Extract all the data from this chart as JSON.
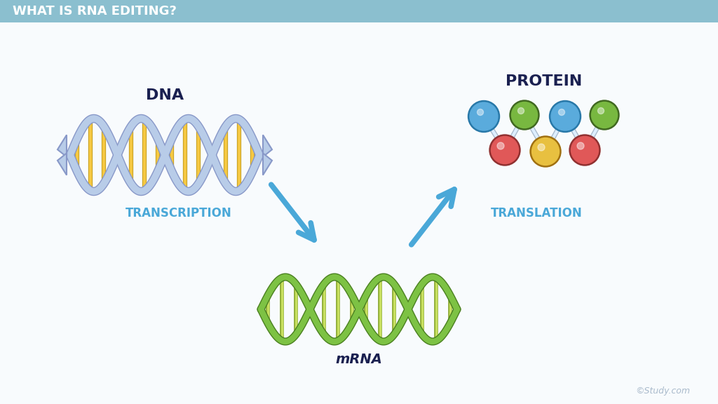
{
  "title": "WHAT IS RNA EDITING?",
  "title_bg_top": "#8bbfcf",
  "title_bg_bot": "#b0d4e0",
  "title_text_color": "#ffffff",
  "bg_color": "#f8fbfd",
  "label_dna": "DNA",
  "label_mrna": "mRNA",
  "label_protein": "PROTEIN",
  "label_transcription": "TRANSCRIPTION",
  "label_translation": "TRANSLATION",
  "label_study": "©Study.com",
  "dna_strand_color": "#b8cce8",
  "dna_strand_outline": "#8898c8",
  "dna_rung_color": "#f5c842",
  "dna_rung_outline": "#c8a020",
  "mrna_strand_color": "#7dc244",
  "mrna_strand_outline": "#4a8020",
  "mrna_rung_color": "#c8e060",
  "mrna_rung_outline": "#80a020",
  "arrow_color": "#4aa8d8",
  "arrow_outline": "#2878a8",
  "protein_top_colors": [
    "#5aabdc",
    "#78b840",
    "#5aabdc",
    "#78b840"
  ],
  "protein_top_outline": [
    "#2878a8",
    "#406820",
    "#2878a8",
    "#406820"
  ],
  "protein_bot_colors": [
    "#e05858",
    "#e8c040",
    "#e05858"
  ],
  "protein_bot_outline": [
    "#903030",
    "#a07010",
    "#903030"
  ],
  "connector_color": "#aabbcc",
  "dark_label_color": "#1a2050",
  "study_color": "#aabbcc"
}
